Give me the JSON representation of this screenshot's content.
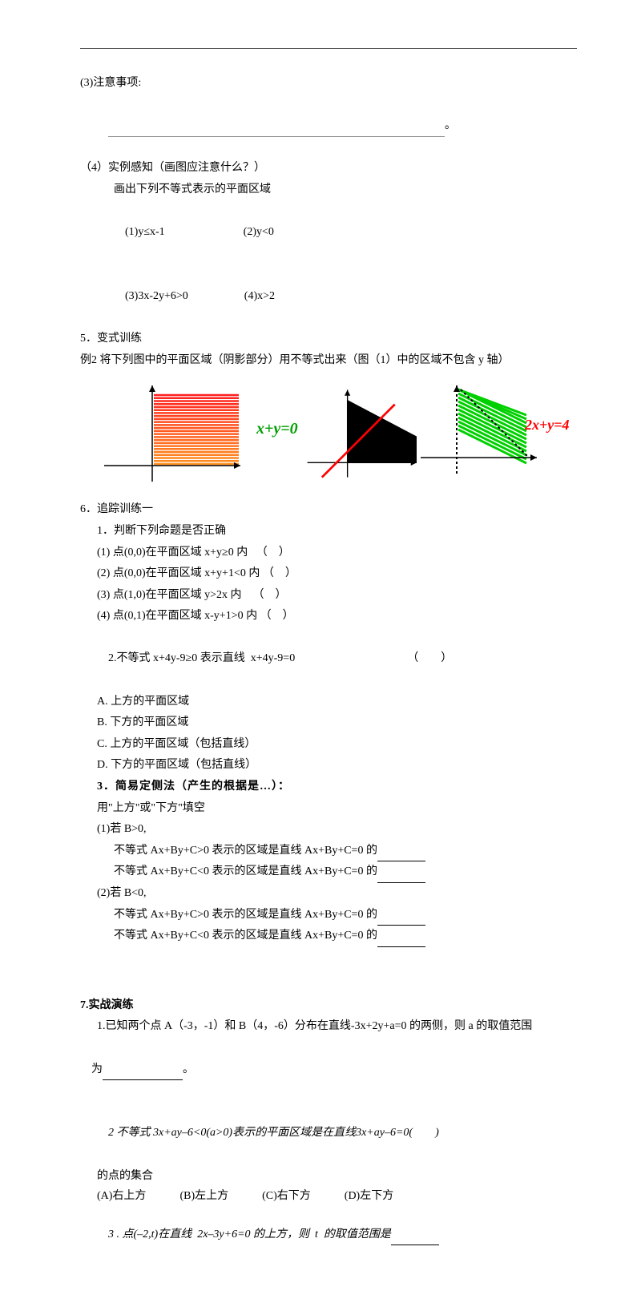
{
  "section3": {
    "heading": "(3)注意事项:",
    "period": "。"
  },
  "section4": {
    "heading": "（4）实例感知（画图应注意什么？）",
    "sub": "画出下列不等式表示的平面区域",
    "items": [
      "(1)y≤x-1",
      "(2)y<0",
      "(3)3x-2y+6>0",
      "(4)x>2"
    ]
  },
  "section5": {
    "heading": "5．变式训练",
    "example": "例2 将下列图中的平面区域（阴影部分）用不等式出来（图（1）中的区域不包含 y 轴）"
  },
  "figures": {
    "fig1": {
      "stripes": 24,
      "top_color": "#ff2020",
      "bottom_color": "#ff9020",
      "axis_color": "#000000"
    },
    "fig2": {
      "fill_color": "#000000",
      "line_color": "#ff0000",
      "eq_label": "x+y=0",
      "eq_color": "#00a000"
    },
    "fig3": {
      "stripe_color": "#00d000",
      "eq_label": "2x+y=4",
      "eq_color": "#ff0000",
      "axis_color": "#000000"
    }
  },
  "section6": {
    "heading": "6．追踪训练一",
    "q1_heading": "1．判断下列命题是否正确",
    "q1_items": [
      "(1) 点(0,0)在平面区域 x+y≥0 内   （　）",
      "(2) 点(0,0)在平面区域 x+y+1<0 内 （　）",
      "(3) 点(1,0)在平面区域 y>2x 内    （　）",
      "(4) 点(0,1)在平面区域 x-y+1>0 内 （　）"
    ],
    "q2": {
      "stem": "2.不等式 x+4y-9≥0 表示直线  x+4y-9=0",
      "paren": "（　　）",
      "opts": [
        "A. 上方的平面区域",
        "B. 下方的平面区域",
        "C. 上方的平面区域（包括直线）",
        "D. 下方的平面区域（包括直线）"
      ]
    },
    "q3_heading": "3．简易定侧法（产生的根据是…）：",
    "q3_sub": "用\"上方\"或\"下方\"填空",
    "q3_b1": "(1)若 B>0,",
    "q3_lines_b1": [
      "不等式 Ax+By+C>0 表示的区域是直线 Ax+By+C=0 的",
      "不等式 Ax+By+C<0 表示的区域是直线 Ax+By+C=0 的"
    ],
    "q3_b2": "(2)若 B<0,",
    "q3_lines_b2": [
      "不等式 Ax+By+C>0 表示的区域是直线 Ax+By+C=0 的",
      "不等式 Ax+By+C<0 表示的区域是直线 Ax+By+C=0 的"
    ]
  },
  "section7": {
    "heading": "7.实战演练",
    "q1a": "1.已知两个点 A（-3，-1）和 B（4，-6）分布在直线-3x+2y+a=0 的两侧，则 a 的取值范围",
    "q1b": "为",
    "q1punc": "。",
    "q2a": "2 不等式 3x+ay–6<0(a>0)表示的平面区域是在直线3x+ay–6=0(　　)",
    "q2b": "的点的集合",
    "q2opts": [
      "(A)右上方",
      "(B)左上方",
      "(C)右下方",
      "(D)左下方"
    ],
    "q3": "3 . 点(–2,t)在直线  2x–3y+6=0 的上方，则  t  的取值范围是"
  }
}
